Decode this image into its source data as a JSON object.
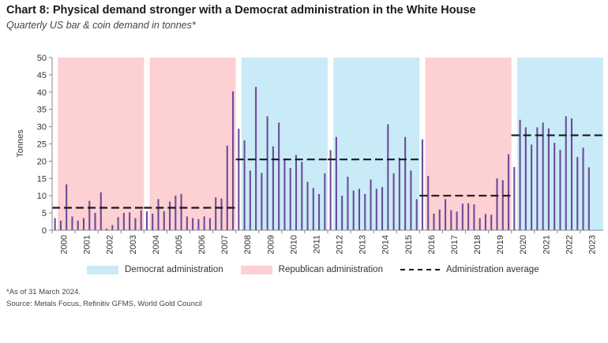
{
  "header": {
    "title": "Chart 8: Physical demand stronger with a Democrat administration in the White House",
    "subtitle": "Quarterly US bar & coin demand in tonnes*"
  },
  "legend": {
    "democrat": "Democrat administration",
    "republican": "Republican administration",
    "average": "Administration average"
  },
  "footnote": "*As of 31 March 2024.",
  "source": "Source: Metals Focus, Refinitiv GFMS, World Gold Council",
  "colors": {
    "democrat_band": "#c9ebf8",
    "republican_band": "#fdd0d3",
    "bar": "#6b4c9a",
    "average_line": "#1a1a1a"
  },
  "chart_data": {
    "type": "bar",
    "ylabel": "Tonnes",
    "ylim": [
      0,
      50
    ],
    "yticks": [
      0,
      5,
      10,
      15,
      20,
      25,
      30,
      35,
      40,
      45,
      50
    ],
    "start_year": 2000,
    "years": [
      "2000",
      "2001",
      "2002",
      "2003",
      "2004",
      "2005",
      "2006",
      "2007",
      "2008",
      "2009",
      "2010",
      "2011",
      "2012",
      "2013",
      "2014",
      "2015",
      "2016",
      "2017",
      "2018",
      "2019",
      "2020",
      "2021",
      "2022",
      "2023"
    ],
    "grid": false,
    "bands": [
      {
        "party": "republican",
        "start_year": 2000.25,
        "end_year": 2004.0
      },
      {
        "party": "republican",
        "start_year": 2004.25,
        "end_year": 2008.0
      },
      {
        "party": "democrat",
        "start_year": 2008.25,
        "end_year": 2012.0
      },
      {
        "party": "democrat",
        "start_year": 2012.25,
        "end_year": 2016.0
      },
      {
        "party": "republican",
        "start_year": 2016.25,
        "end_year": 2020.0
      },
      {
        "party": "democrat",
        "start_year": 2020.25,
        "end_year": 2024.0
      }
    ],
    "averages": [
      {
        "start_year": 2000.0,
        "end_year": 2004.0,
        "value": 6.5
      },
      {
        "start_year": 2004.0,
        "end_year": 2008.0,
        "value": 6.5
      },
      {
        "start_year": 2008.0,
        "end_year": 2012.0,
        "value": 20.5
      },
      {
        "start_year": 2012.0,
        "end_year": 2016.0,
        "value": 20.5
      },
      {
        "start_year": 2016.0,
        "end_year": 2020.0,
        "value": 10.0
      },
      {
        "start_year": 2020.0,
        "end_year": 2024.0,
        "value": 27.5
      }
    ],
    "series": [
      {
        "values": [
          3.5,
          2.8,
          13.3,
          4.0,
          2.8,
          3.5,
          8.5,
          5.0,
          11.0,
          0.5,
          1.5,
          3.8,
          5.0,
          5.2,
          3.5,
          5.8,
          5.5,
          4.8,
          9.0,
          5.5,
          8.3,
          10.0,
          10.5,
          4.0,
          3.5,
          3.2,
          4.0,
          3.5,
          9.5,
          9.2,
          24.5,
          40.2,
          29.4,
          26.0,
          17.3,
          41.5,
          16.6,
          33.0,
          24.3,
          31.2,
          20.4,
          18.0,
          21.8,
          19.8,
          14.0,
          12.2,
          10.5,
          16.5,
          23.2,
          27.0,
          10.0,
          15.5,
          11.5,
          12.0,
          10.5,
          14.7,
          12.0,
          12.5,
          30.7,
          16.5,
          21.0,
          27.0,
          17.3,
          9.0,
          26.3,
          15.7,
          4.8,
          6.0,
          9.0,
          5.8,
          5.4,
          7.7,
          7.8,
          7.5,
          3.5,
          4.7,
          4.5,
          15.0,
          14.5,
          22.0,
          18.3,
          32.0,
          29.8,
          24.8,
          29.8,
          31.2,
          29.5,
          25.3,
          23.3,
          33.0,
          32.4,
          21.2,
          23.9,
          18.2
        ]
      }
    ]
  }
}
